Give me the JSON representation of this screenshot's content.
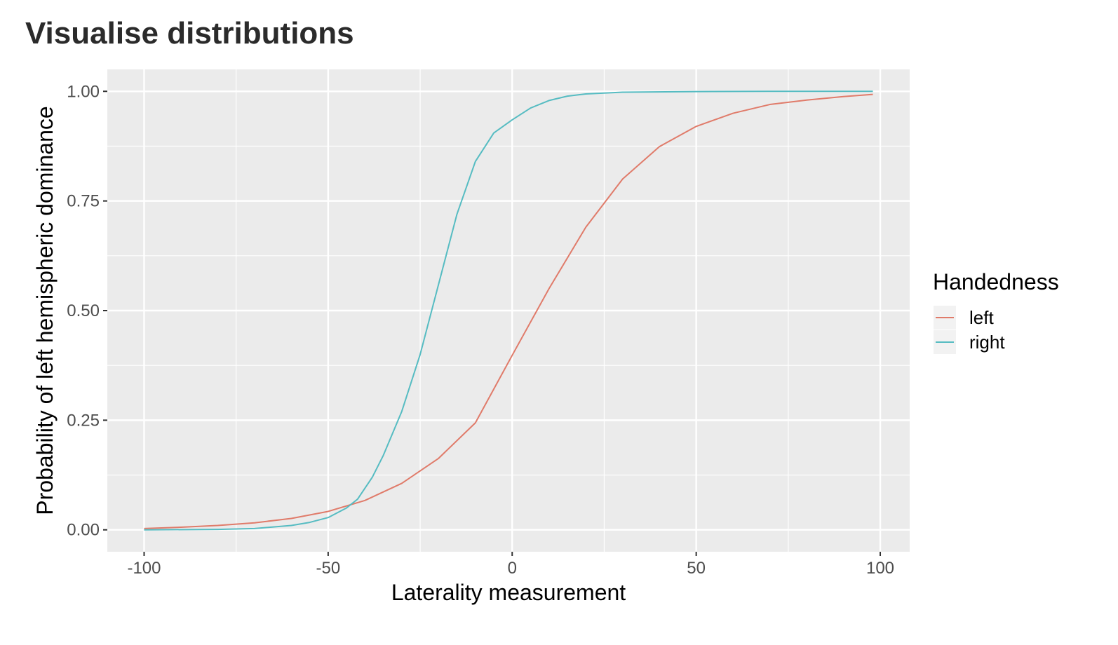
{
  "chart_data": {
    "type": "line",
    "title": "Visualise distributions",
    "xlabel": "Laterality measurement",
    "ylabel": "Probability of left hemispheric dominance",
    "xlim": [
      -110,
      108
    ],
    "ylim": [
      -0.05,
      1.05
    ],
    "x_ticks": [
      -100,
      -50,
      0,
      50,
      100
    ],
    "x_tick_labels": [
      "-100",
      "-50",
      "0",
      "50",
      "100"
    ],
    "y_ticks": [
      0,
      0.25,
      0.5,
      0.75,
      1
    ],
    "y_tick_labels": [
      "0.00",
      "0.25",
      "0.50",
      "0.75",
      "1.00"
    ],
    "x_minor": [
      -75,
      -25,
      25,
      75
    ],
    "y_minor": [
      0.125,
      0.375,
      0.625,
      0.875
    ],
    "grid": true,
    "legend": {
      "title": "Handedness",
      "position": "right"
    },
    "series": [
      {
        "name": "left",
        "color": "#E07B6A",
        "x": [
          -100,
          -90,
          -80,
          -70,
          -60,
          -50,
          -40,
          -30,
          -20,
          -10,
          0,
          10,
          20,
          30,
          40,
          50,
          60,
          70,
          80,
          90,
          98
        ],
        "y": [
          0.003,
          0.006,
          0.01,
          0.016,
          0.026,
          0.042,
          0.067,
          0.106,
          0.163,
          0.244,
          0.398,
          0.55,
          0.69,
          0.8,
          0.874,
          0.92,
          0.95,
          0.97,
          0.98,
          0.988,
          0.993
        ]
      },
      {
        "name": "right",
        "color": "#56BCC2",
        "x": [
          -100,
          -80,
          -70,
          -60,
          -55,
          -50,
          -45,
          -42,
          -38,
          -35,
          -30,
          -25,
          -20,
          -15,
          -10,
          -5,
          0,
          5,
          10,
          15,
          20,
          30,
          50,
          70,
          98
        ],
        "y": [
          0.0,
          0.001,
          0.003,
          0.01,
          0.017,
          0.028,
          0.05,
          0.07,
          0.12,
          0.17,
          0.27,
          0.4,
          0.56,
          0.72,
          0.84,
          0.905,
          0.935,
          0.962,
          0.979,
          0.989,
          0.994,
          0.998,
          0.9995,
          1.0,
          1.0
        ]
      }
    ]
  }
}
